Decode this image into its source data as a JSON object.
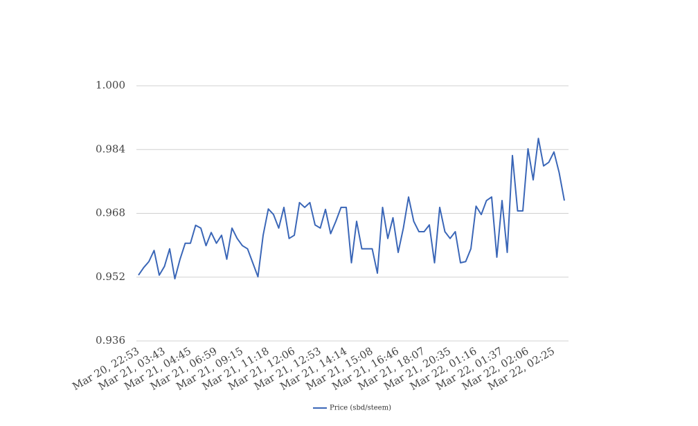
{
  "chart_data": {
    "type": "line",
    "categories": [
      "Mar 20, 22:53",
      null,
      null,
      null,
      null,
      "Mar 21, 03:43",
      null,
      null,
      null,
      null,
      "Mar 21, 04:45",
      null,
      null,
      null,
      null,
      "Mar 21, 06:59",
      null,
      null,
      null,
      null,
      "Mar 21, 09:15",
      null,
      null,
      null,
      null,
      "Mar 21, 11:18",
      null,
      null,
      null,
      null,
      "Mar 21, 12:06",
      null,
      null,
      null,
      null,
      "Mar 21, 12:53",
      null,
      null,
      null,
      null,
      "Mar 21, 14:14",
      null,
      null,
      null,
      null,
      "Mar 21, 15:08",
      null,
      null,
      null,
      null,
      "Mar 21, 16:46",
      null,
      null,
      null,
      null,
      "Mar 21, 18:07",
      null,
      null,
      null,
      null,
      "Mar 21, 20:35",
      null,
      null,
      null,
      null,
      "Mar 22, 01:16",
      null,
      null,
      null,
      null,
      "Mar 22, 01:37",
      null,
      null,
      null,
      null,
      "Mar 22, 02:06",
      null,
      null,
      null,
      null,
      "Mar 22, 02:25",
      null,
      null
    ],
    "series": [
      {
        "name": "Price (sbd/steem)",
        "color": "#3a66b7",
        "values": [
          0.9525,
          0.9544,
          0.9559,
          0.9587,
          0.9525,
          0.9547,
          0.9591,
          0.9516,
          0.9565,
          0.9605,
          0.9605,
          0.965,
          0.9643,
          0.9599,
          0.9632,
          0.9605,
          0.9625,
          0.9565,
          0.9643,
          0.9617,
          0.9599,
          0.9591,
          0.9556,
          0.9521,
          0.9625,
          0.9691,
          0.9677,
          0.9643,
          0.9695,
          0.9617,
          0.9625,
          0.9707,
          0.9695,
          0.9707,
          0.9651,
          0.9643,
          0.969,
          0.9629,
          0.966,
          0.9695,
          0.9695,
          0.9556,
          0.966,
          0.9591,
          0.9591,
          0.9591,
          0.953,
          0.9695,
          0.9617,
          0.9669,
          0.9582,
          0.9643,
          0.9721,
          0.966,
          0.9634,
          0.9634,
          0.9651,
          0.9556,
          0.9695,
          0.9634,
          0.9617,
          0.9634,
          0.9556,
          0.9559,
          0.9591,
          0.9698,
          0.9677,
          0.9712,
          0.9721,
          0.957,
          0.9712,
          0.9582,
          0.9825,
          0.9686,
          0.9686,
          0.9842,
          0.9764,
          0.9868,
          0.9799,
          0.9808,
          0.9834,
          0.9782,
          0.9712
        ]
      }
    ],
    "ylim": [
      0.936,
      1.0
    ],
    "yticks": [
      0.936,
      0.952,
      0.968,
      0.984,
      {
        "value": 1.0,
        "label": "1.000"
      }
    ],
    "grid": true,
    "legend": "bottom"
  }
}
